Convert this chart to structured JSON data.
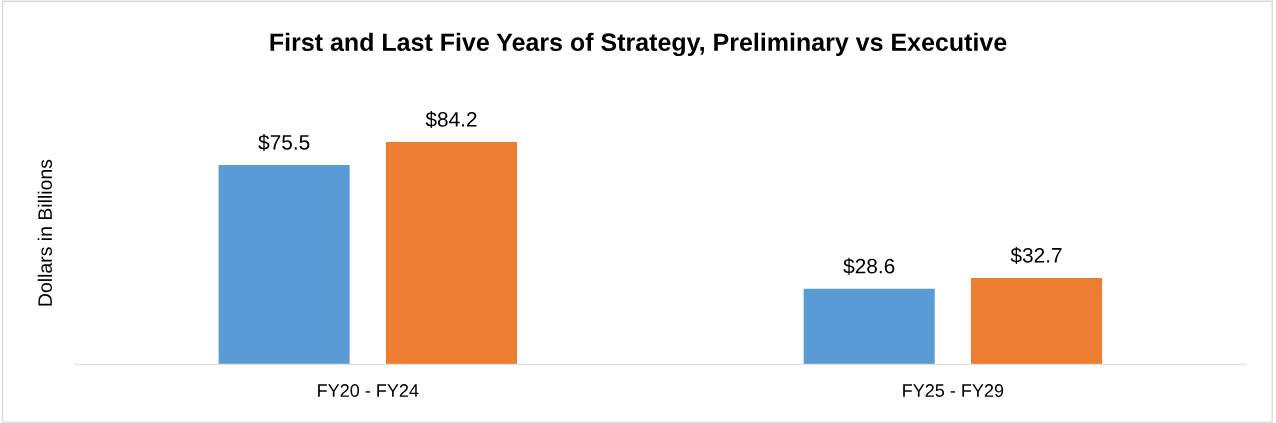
{
  "chart_data": {
    "type": "bar",
    "title": "First and Last Five Years of Strategy, Preliminary vs Executive",
    "ylabel": "Dollars in Billions",
    "categories": [
      "FY20 - FY24",
      "FY25 - FY29"
    ],
    "series": [
      {
        "color": "#5b9bd5",
        "values": [
          75.5,
          28.6
        ],
        "value_labels": [
          "$75.5",
          "$28.6"
        ]
      },
      {
        "color": "#ed7d31",
        "values": [
          84.2,
          32.7
        ],
        "value_labels": [
          "$84.2",
          "$32.7"
        ]
      }
    ]
  }
}
